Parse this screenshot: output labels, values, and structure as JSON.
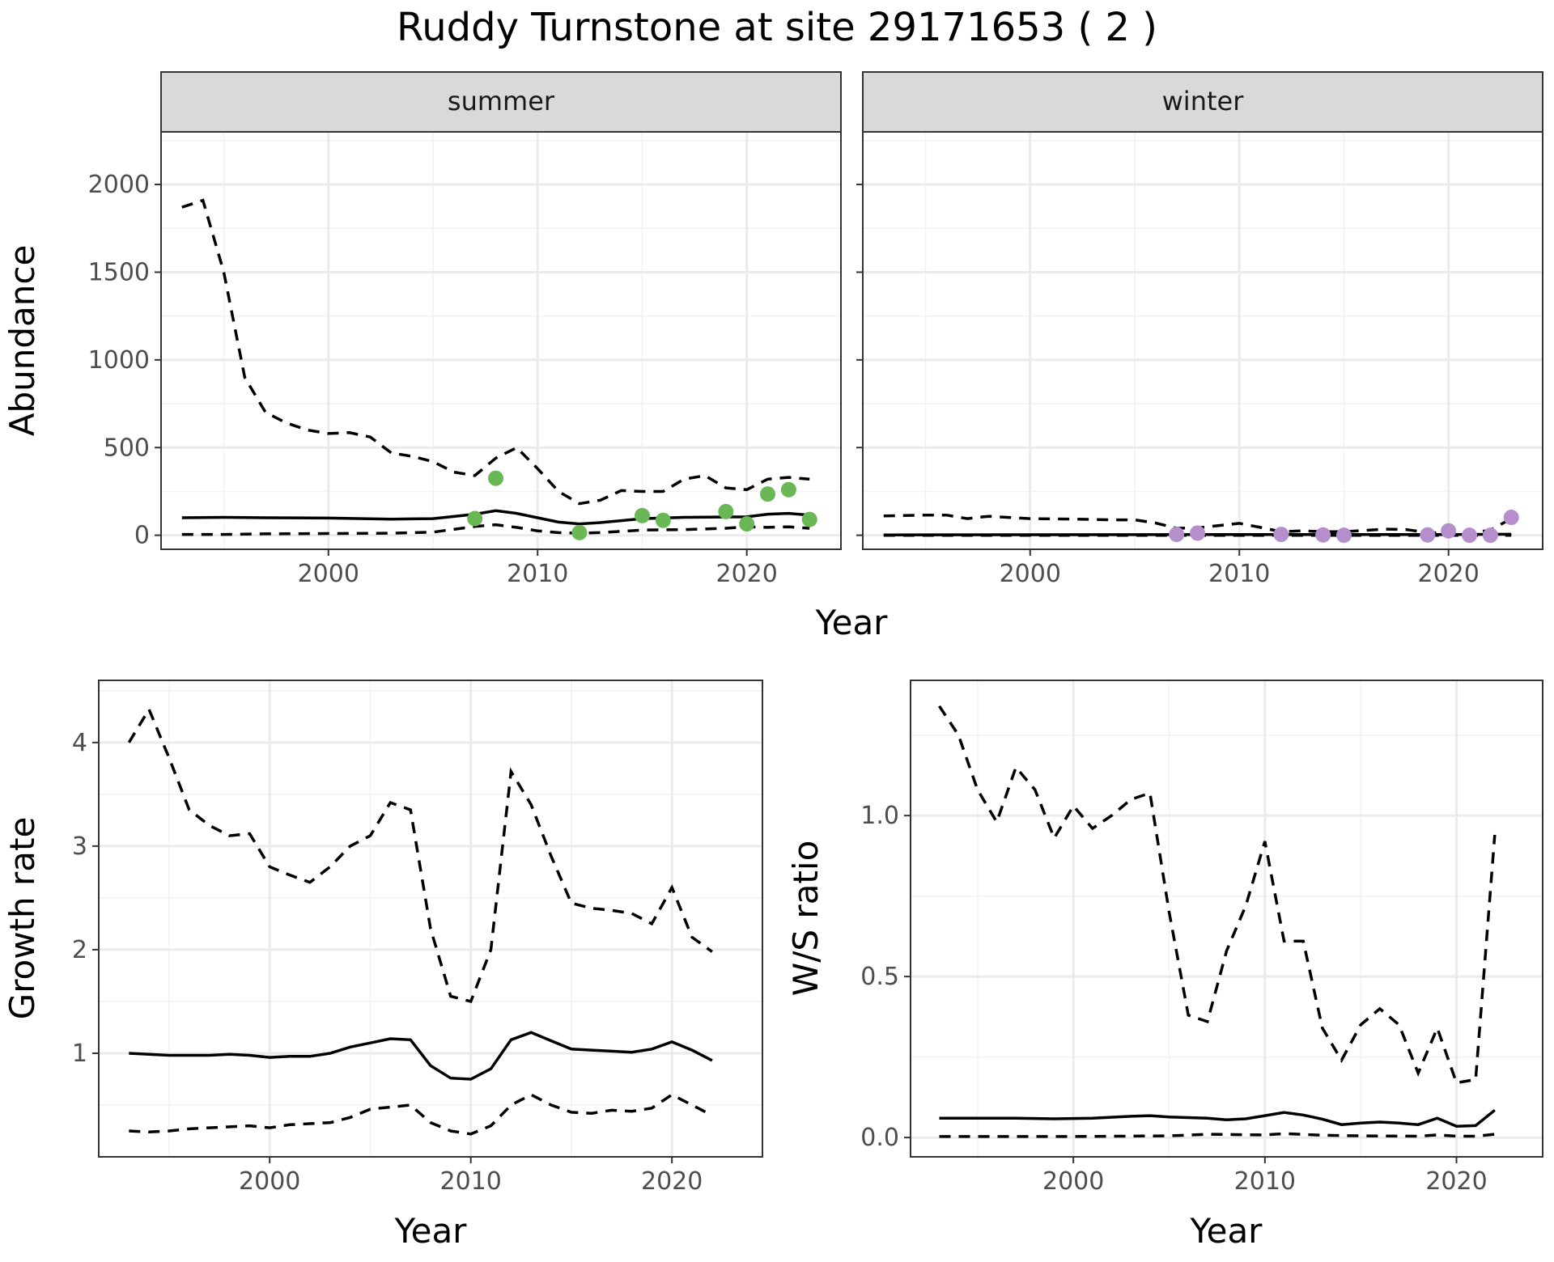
{
  "title": "Ruddy Turnstone at site 29171653 ( 2 )",
  "chart_data": [
    {
      "type": "line",
      "facet": "summer",
      "xlabel": "Year",
      "ylabel": "Abundance",
      "xlim": [
        1992,
        2024.5
      ],
      "ylim": [
        -80,
        2300
      ],
      "x_ticks": [
        2000,
        2010,
        2020
      ],
      "y_ticks": [
        0,
        500,
        1000,
        1500,
        2000
      ],
      "point_color": "#6ab755",
      "series": [
        {
          "role": "estimate",
          "x": [
            1993,
            1995,
            1997,
            2000,
            2003,
            2005,
            2007,
            2008,
            2009,
            2010,
            2011,
            2012,
            2013,
            2015,
            2017,
            2020,
            2021,
            2022,
            2023
          ],
          "y": [
            100,
            102,
            100,
            98,
            92,
            95,
            120,
            140,
            125,
            100,
            75,
            65,
            72,
            95,
            102,
            105,
            120,
            125,
            115
          ]
        },
        {
          "role": "upper",
          "x": [
            1993,
            1994,
            1995,
            1996,
            1997,
            1998,
            1999,
            2000,
            2001,
            2002,
            2003,
            2004,
            2005,
            2006,
            2007,
            2008,
            2009,
            2010,
            2011,
            2012,
            2013,
            2014,
            2015,
            2016,
            2017,
            2018,
            2019,
            2020,
            2021,
            2022,
            2023
          ],
          "y": [
            1870,
            1910,
            1500,
            900,
            700,
            640,
            600,
            580,
            585,
            560,
            470,
            450,
            420,
            360,
            340,
            440,
            500,
            380,
            250,
            180,
            200,
            255,
            250,
            250,
            320,
            340,
            270,
            260,
            320,
            330,
            320
          ]
        },
        {
          "role": "lower",
          "x": [
            1993,
            1995,
            1997,
            2000,
            2003,
            2005,
            2007,
            2008,
            2009,
            2010,
            2011,
            2012,
            2013,
            2015,
            2017,
            2019,
            2020,
            2021,
            2022,
            2023
          ],
          "y": [
            5,
            5,
            8,
            10,
            12,
            18,
            50,
            60,
            45,
            25,
            15,
            12,
            15,
            30,
            32,
            40,
            48,
            45,
            48,
            40
          ]
        },
        {
          "role": "observed",
          "x": [
            2007,
            2008,
            2012,
            2015,
            2016,
            2019,
            2020,
            2021,
            2022,
            2023
          ],
          "y": [
            95,
            325,
            15,
            112,
            85,
            135,
            65,
            235,
            260,
            90
          ]
        }
      ]
    },
    {
      "type": "line",
      "facet": "winter",
      "xlabel": "Year",
      "ylabel": "Abundance",
      "xlim": [
        1992,
        2024.5
      ],
      "ylim": [
        -80,
        2300
      ],
      "x_ticks": [
        2000,
        2010,
        2020
      ],
      "y_ticks": [
        0,
        500,
        1000,
        1500,
        2000
      ],
      "point_color": "#b58fcb",
      "series": [
        {
          "role": "estimate",
          "x": [
            1993,
            2000,
            2010,
            2020,
            2023
          ],
          "y": [
            2,
            3,
            4,
            4,
            6
          ]
        },
        {
          "role": "upper",
          "x": [
            1993,
            1995,
            1996,
            1997,
            1998,
            2000,
            2002,
            2003,
            2004,
            2005,
            2006,
            2007,
            2008,
            2009,
            2010,
            2011,
            2012,
            2013,
            2014,
            2015,
            2016,
            2017,
            2018,
            2019,
            2020,
            2021,
            2022,
            2023
          ],
          "y": [
            110,
            115,
            115,
            95,
            108,
            95,
            92,
            90,
            88,
            88,
            70,
            40,
            42,
            55,
            68,
            45,
            20,
            25,
            20,
            20,
            28,
            35,
            32,
            15,
            12,
            10,
            30,
            95
          ]
        },
        {
          "role": "lower",
          "x": [
            1993,
            2010,
            2023
          ],
          "y": [
            0,
            0,
            0
          ]
        },
        {
          "role": "observed",
          "x": [
            2007,
            2008,
            2012,
            2014,
            2015,
            2019,
            2020,
            2021,
            2022,
            2023
          ],
          "y": [
            5,
            12,
            5,
            2,
            0,
            2,
            25,
            0,
            0,
            102
          ]
        }
      ]
    },
    {
      "type": "line",
      "xlabel": "Year",
      "ylabel": "Growth rate",
      "xlim": [
        1991.5,
        2024.5
      ],
      "ylim": [
        0,
        4.6
      ],
      "x_ticks": [
        2000,
        2010,
        2020
      ],
      "y_ticks": [
        1,
        2,
        3,
        4
      ],
      "series": [
        {
          "role": "estimate",
          "x": [
            1993,
            1994,
            1995,
            1996,
            1997,
            1998,
            1999,
            2000,
            2001,
            2002,
            2003,
            2004,
            2005,
            2006,
            2007,
            2008,
            2009,
            2010,
            2011,
            2012,
            2013,
            2014,
            2015,
            2016,
            2017,
            2018,
            2019,
            2020,
            2021,
            2022
          ],
          "y": [
            1.0,
            0.99,
            0.98,
            0.98,
            0.98,
            0.99,
            0.98,
            0.96,
            0.97,
            0.97,
            1.0,
            1.06,
            1.1,
            1.14,
            1.13,
            0.88,
            0.76,
            0.75,
            0.85,
            1.13,
            1.2,
            1.12,
            1.04,
            1.03,
            1.02,
            1.01,
            1.04,
            1.11,
            1.03,
            0.93
          ]
        },
        {
          "role": "upper",
          "x": [
            1993,
            1994,
            1995,
            1996,
            1997,
            1998,
            1999,
            2000,
            2001,
            2002,
            2003,
            2004,
            2005,
            2006,
            2007,
            2008,
            2009,
            2010,
            2011,
            2012,
            2013,
            2014,
            2015,
            2016,
            2017,
            2018,
            2019,
            2020,
            2021,
            2022
          ],
          "y": [
            4.0,
            4.32,
            3.85,
            3.35,
            3.2,
            3.1,
            3.12,
            2.8,
            2.72,
            2.65,
            2.8,
            3.0,
            3.1,
            3.42,
            3.35,
            2.2,
            1.55,
            1.5,
            2.0,
            3.72,
            3.4,
            2.9,
            2.45,
            2.4,
            2.38,
            2.35,
            2.25,
            2.6,
            2.12,
            1.98
          ]
        },
        {
          "role": "lower",
          "x": [
            1993,
            1994,
            1995,
            1996,
            1997,
            1998,
            1999,
            2000,
            2001,
            2002,
            2003,
            2004,
            2005,
            2006,
            2007,
            2008,
            2009,
            2010,
            2011,
            2012,
            2013,
            2014,
            2015,
            2016,
            2017,
            2018,
            2019,
            2020,
            2021,
            2022
          ],
          "y": [
            0.25,
            0.24,
            0.25,
            0.27,
            0.28,
            0.29,
            0.3,
            0.28,
            0.31,
            0.32,
            0.33,
            0.38,
            0.46,
            0.48,
            0.5,
            0.33,
            0.25,
            0.22,
            0.3,
            0.5,
            0.6,
            0.5,
            0.43,
            0.42,
            0.45,
            0.44,
            0.47,
            0.6,
            0.5,
            0.4
          ]
        }
      ]
    },
    {
      "type": "line",
      "xlabel": "Year",
      "ylabel": "W/S ratio",
      "xlim": [
        1991.5,
        2024.5
      ],
      "ylim": [
        -0.06,
        1.42
      ],
      "x_ticks": [
        2000,
        2010,
        2020
      ],
      "y_ticks": [
        0.0,
        0.5,
        1.0
      ],
      "y_tick_labels": [
        "0.0",
        "0.5",
        "1.0"
      ],
      "series": [
        {
          "role": "estimate",
          "x": [
            1993,
            1995,
            1997,
            1999,
            2001,
            2003,
            2004,
            2005,
            2007,
            2008,
            2009,
            2010,
            2011,
            2012,
            2013,
            2014,
            2015,
            2016,
            2017,
            2018,
            2019,
            2020,
            2021,
            2022
          ],
          "y": [
            0.06,
            0.06,
            0.06,
            0.058,
            0.06,
            0.066,
            0.068,
            0.064,
            0.06,
            0.055,
            0.058,
            0.068,
            0.078,
            0.07,
            0.057,
            0.04,
            0.045,
            0.048,
            0.045,
            0.04,
            0.06,
            0.035,
            0.037,
            0.085
          ]
        },
        {
          "role": "upper",
          "x": [
            1993,
            1994,
            1995,
            1996,
            1997,
            1998,
            1999,
            2000,
            2001,
            2002,
            2003,
            2004,
            2005,
            2006,
            2007,
            2008,
            2009,
            2010,
            2011,
            2012,
            2013,
            2014,
            2015,
            2016,
            2017,
            2018,
            2019,
            2020,
            2021,
            2022
          ],
          "y": [
            1.34,
            1.25,
            1.08,
            0.98,
            1.15,
            1.08,
            0.93,
            1.03,
            0.96,
            1.0,
            1.05,
            1.07,
            0.7,
            0.38,
            0.36,
            0.58,
            0.72,
            0.92,
            0.61,
            0.61,
            0.34,
            0.24,
            0.35,
            0.4,
            0.35,
            0.2,
            0.34,
            0.17,
            0.18,
            0.94
          ]
        },
        {
          "role": "lower",
          "x": [
            1993,
            2000,
            2005,
            2007,
            2010,
            2011,
            2013,
            2015,
            2018,
            2019,
            2020,
            2021,
            2022
          ],
          "y": [
            0.003,
            0.003,
            0.005,
            0.01,
            0.008,
            0.012,
            0.007,
            0.005,
            0.004,
            0.008,
            0.004,
            0.004,
            0.01
          ]
        }
      ]
    }
  ]
}
